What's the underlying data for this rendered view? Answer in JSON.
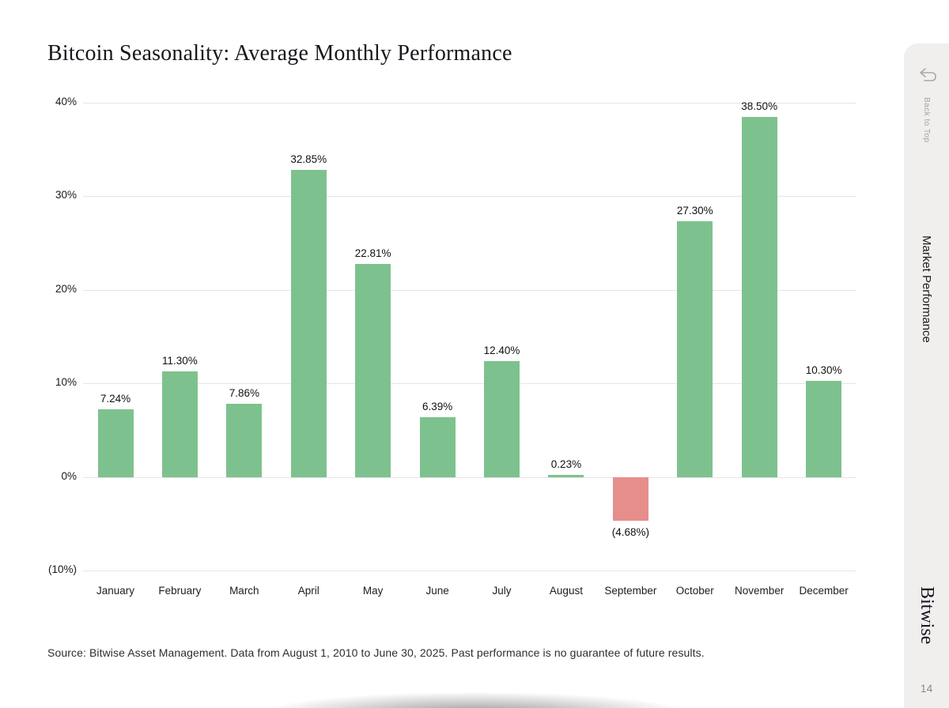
{
  "page": {
    "title": "Bitcoin Seasonality: Average Monthly Performance",
    "source_note": "Source: Bitwise Asset Management. Data from August 1, 2010 to June 30, 2025. Past performance is no guarantee of future results.",
    "page_number": "14"
  },
  "sidebar": {
    "back_to_top_label": "Back to Top",
    "back_icon": "return-arrow-icon",
    "section_label": "Market Performance",
    "brand": "Bitwise",
    "background_color": "#f0efed"
  },
  "chart_data": {
    "type": "bar",
    "title": "Bitcoin Seasonality: Average Monthly Performance",
    "categories": [
      "January",
      "February",
      "March",
      "April",
      "May",
      "June",
      "July",
      "August",
      "September",
      "October",
      "November",
      "December"
    ],
    "values": [
      7.24,
      11.3,
      7.86,
      32.85,
      22.81,
      6.39,
      12.4,
      0.23,
      -4.68,
      27.3,
      38.5,
      10.3
    ],
    "value_labels": [
      "7.24%",
      "11.30%",
      "7.86%",
      "32.85%",
      "22.81%",
      "6.39%",
      "12.40%",
      "0.23%",
      "(4.68%)",
      "27.30%",
      "38.50%",
      "10.30%"
    ],
    "xlabel": "",
    "ylabel": "",
    "ylim": [
      -10,
      40
    ],
    "yticks": [
      {
        "value": 40,
        "label": "40%"
      },
      {
        "value": 30,
        "label": "30%"
      },
      {
        "value": 20,
        "label": "20%"
      },
      {
        "value": 10,
        "label": "10%"
      },
      {
        "value": 0,
        "label": "0%"
      },
      {
        "value": -10,
        "label": "(10%)"
      }
    ],
    "grid": true,
    "legend_position": "none",
    "positive_color": "#7dc28e",
    "negative_color": "#e68e8c",
    "grid_color": "#e5e5e5"
  }
}
